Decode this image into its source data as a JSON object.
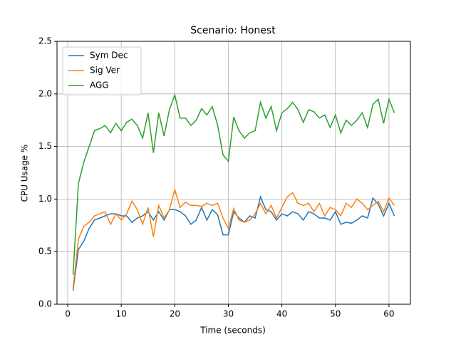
{
  "chart_data": {
    "type": "line",
    "title": "Scenario: Honest",
    "xlabel": "Time (seconds)",
    "ylabel": "CPU Usage %",
    "x": [
      1,
      2,
      3,
      4,
      5,
      6,
      7,
      8,
      9,
      10,
      11,
      12,
      13,
      14,
      15,
      16,
      17,
      18,
      19,
      20,
      21,
      22,
      23,
      24,
      25,
      26,
      27,
      28,
      29,
      30,
      31,
      32,
      33,
      34,
      35,
      36,
      37,
      38,
      39,
      40,
      41,
      42,
      43,
      44,
      45,
      46,
      47,
      48,
      49,
      50,
      51,
      52,
      53,
      54,
      55,
      56,
      57,
      58,
      59,
      60,
      61
    ],
    "series": [
      {
        "name": "Sym Dec",
        "color": "#1f77b4",
        "values": [
          0.13,
          0.52,
          0.6,
          0.72,
          0.8,
          0.82,
          0.84,
          0.86,
          0.86,
          0.84,
          0.84,
          0.78,
          0.82,
          0.84,
          0.88,
          0.8,
          0.88,
          0.8,
          0.9,
          0.9,
          0.88,
          0.84,
          0.76,
          0.8,
          0.92,
          0.8,
          0.9,
          0.85,
          0.66,
          0.66,
          0.88,
          0.82,
          0.78,
          0.84,
          0.82,
          1.02,
          0.9,
          0.88,
          0.8,
          0.86,
          0.84,
          0.88,
          0.86,
          0.8,
          0.88,
          0.86,
          0.82,
          0.82,
          0.8,
          0.88,
          0.76,
          0.78,
          0.77,
          0.8,
          0.84,
          0.82,
          1.01,
          0.95,
          0.84,
          0.96,
          0.84
        ]
      },
      {
        "name": "Sig Ver",
        "color": "#ff7f0e",
        "values": [
          0.15,
          0.62,
          0.74,
          0.78,
          0.84,
          0.86,
          0.88,
          0.76,
          0.86,
          0.8,
          0.86,
          0.98,
          0.9,
          0.76,
          0.92,
          0.64,
          0.94,
          0.82,
          0.9,
          1.09,
          0.92,
          0.97,
          0.94,
          0.94,
          0.93,
          0.96,
          0.94,
          0.96,
          0.82,
          0.72,
          0.91,
          0.8,
          0.78,
          0.8,
          0.86,
          0.96,
          0.86,
          0.94,
          0.82,
          0.92,
          1.02,
          1.06,
          0.96,
          0.94,
          0.96,
          0.88,
          0.96,
          0.84,
          0.92,
          0.9,
          0.84,
          0.96,
          0.92,
          1.0,
          0.96,
          0.9,
          0.94,
          0.98,
          0.88,
          1.01,
          0.94
        ]
      },
      {
        "name": "AGG",
        "color": "#2ca02c",
        "values": [
          0.28,
          1.15,
          1.35,
          1.5,
          1.65,
          1.67,
          1.7,
          1.63,
          1.72,
          1.65,
          1.73,
          1.76,
          1.7,
          1.58,
          1.82,
          1.44,
          1.82,
          1.6,
          1.85,
          1.99,
          1.77,
          1.77,
          1.7,
          1.75,
          1.86,
          1.8,
          1.88,
          1.7,
          1.42,
          1.36,
          1.78,
          1.65,
          1.58,
          1.63,
          1.65,
          1.92,
          1.77,
          1.88,
          1.65,
          1.82,
          1.86,
          1.92,
          1.85,
          1.73,
          1.85,
          1.83,
          1.77,
          1.8,
          1.68,
          1.8,
          1.63,
          1.75,
          1.7,
          1.75,
          1.82,
          1.68,
          1.9,
          1.95,
          1.72,
          1.95,
          1.82
        ]
      }
    ],
    "xlim": [
      -2,
      64
    ],
    "xticks": [
      0,
      10,
      20,
      30,
      40,
      50,
      60
    ],
    "ylim": [
      0,
      2.5
    ],
    "yticks": [
      {
        "value": 0,
        "label": "0.0"
      },
      0.5,
      {
        "value": 1,
        "label": "1.0"
      },
      1.5,
      {
        "value": 2,
        "label": "2.0"
      },
      2.5
    ],
    "grid": true,
    "legend": "upper left"
  }
}
